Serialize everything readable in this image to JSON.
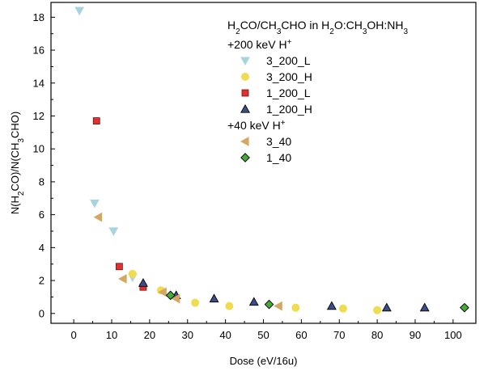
{
  "chart_data": {
    "type": "scatter",
    "title": "",
    "xlabel": "Dose (eV/16u)",
    "ylabel": "N(H2CO)/N(CH3CHO)",
    "xlim": [
      -6,
      106
    ],
    "ylim": [
      -0.6,
      18.9
    ],
    "xticks": [
      0,
      10,
      20,
      30,
      40,
      50,
      60,
      70,
      80,
      90,
      100
    ],
    "yticks": [
      0,
      2,
      4,
      6,
      8,
      10,
      12,
      14,
      16,
      18
    ],
    "legend_position": "top-right",
    "legend_title": "H2CO/CH3CHO in H2O:CH3OH:NH3",
    "groups": [
      {
        "label": "+200 keV H+",
        "series": [
          "3_200_L",
          "3_200_H",
          "1_200_L",
          "1_200_H"
        ]
      },
      {
        "label": "+40 keV H+",
        "series": [
          "3_40",
          "1_40"
        ]
      }
    ],
    "series": [
      {
        "name": "3_200_L",
        "marker": "triangle-down",
        "color": "#a8d4e0",
        "points": [
          [
            1.5,
            18.4
          ],
          [
            5.5,
            6.7
          ],
          [
            10.5,
            5.0
          ],
          [
            15.5,
            2.2
          ]
        ]
      },
      {
        "name": "3_200_H",
        "marker": "circle",
        "color": "#f0dc50",
        "points": [
          [
            15.5,
            2.4
          ],
          [
            23,
            1.4
          ],
          [
            32,
            0.65
          ],
          [
            41,
            0.45
          ],
          [
            58.5,
            0.35
          ],
          [
            71,
            0.3
          ],
          [
            80,
            0.2
          ]
        ]
      },
      {
        "name": "1_200_L",
        "marker": "square",
        "color": "#e03030",
        "points": [
          [
            6,
            11.7
          ],
          [
            12,
            2.85
          ],
          [
            18.3,
            1.6
          ]
        ]
      },
      {
        "name": "1_200_H",
        "marker": "triangle-up",
        "color": "#3c4e88",
        "points": [
          [
            18.3,
            1.85
          ],
          [
            27,
            1.1
          ],
          [
            37,
            0.9
          ],
          [
            47.5,
            0.7
          ],
          [
            68,
            0.45
          ],
          [
            82.5,
            0.35
          ],
          [
            92.5,
            0.35
          ]
        ]
      },
      {
        "name": "3_40",
        "marker": "triangle-left",
        "color": "#d4a860",
        "points": [
          [
            6.5,
            5.85
          ],
          [
            13,
            2.1
          ],
          [
            23.5,
            1.3
          ],
          [
            27,
            0.9
          ],
          [
            54,
            0.45
          ]
        ]
      },
      {
        "name": "1_40",
        "marker": "diamond",
        "color": "#44aa33",
        "points": [
          [
            25.5,
            1.1
          ],
          [
            51.5,
            0.55
          ],
          [
            103,
            0.35
          ]
        ]
      }
    ]
  }
}
